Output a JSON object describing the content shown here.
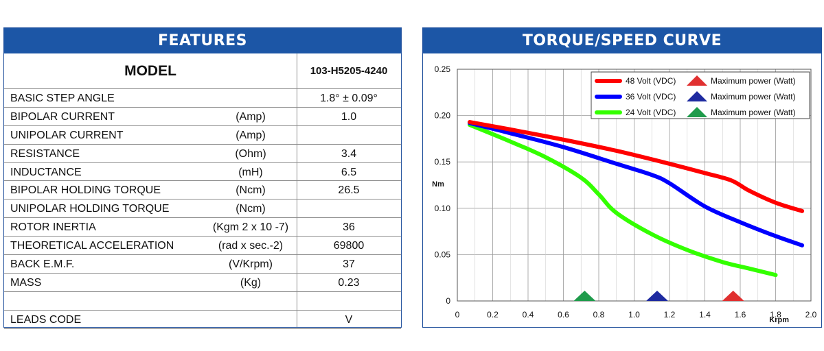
{
  "features": {
    "title": "FEATURES",
    "model_label": "MODEL",
    "model_value": "103-H5205-4240",
    "rows": [
      {
        "name": "BASIC STEP ANGLE",
        "unit": "",
        "value": "1.8° ± 0.09°"
      },
      {
        "name": "BIPOLAR CURRENT",
        "unit": "(Amp)",
        "value": "1.0"
      },
      {
        "name": "UNIPOLAR CURRENT",
        "unit": "(Amp)",
        "value": ""
      },
      {
        "name": "RESISTANCE",
        "unit": "(Ohm)",
        "value": "3.4"
      },
      {
        "name": "INDUCTANCE",
        "unit": "(mH)",
        "value": "6.5"
      },
      {
        "name": "BIPOLAR HOLDING TORQUE",
        "unit": "(Ncm)",
        "value": "26.5"
      },
      {
        "name": "UNIPOLAR HOLDING TORQUE",
        "unit": "(Ncm)",
        "value": ""
      },
      {
        "name": "ROTOR INERTIA",
        "unit": "(Kgm 2 x 10 -7)",
        "value": "36"
      },
      {
        "name": "THEORETICAL ACCELERATION",
        "unit": "(rad x sec.-2)",
        "value": "69800"
      },
      {
        "name": "BACK E.M.F.",
        "unit": "(V/Krpm)",
        "value": "37"
      },
      {
        "name": "MASS",
        "unit": "(Kg)",
        "value": "0.23"
      },
      {
        "name": "",
        "unit": "",
        "value": ""
      },
      {
        "name": "LEADS CODE",
        "unit": "",
        "value": "V"
      }
    ]
  },
  "chart_panel": {
    "title": "TORQUE/SPEED CURVE"
  },
  "chart_data": {
    "type": "line",
    "title": "TORQUE/SPEED CURVE",
    "xlabel": "Krpm",
    "ylabel": "Nm",
    "xlim": [
      0,
      2.0
    ],
    "ylim": [
      0,
      0.25
    ],
    "x_ticks": [
      "0",
      "0.2",
      "0.4",
      "0.6",
      "0.8",
      "1.0",
      "1.2",
      "1.4",
      "1.6",
      "1.8",
      "2.0"
    ],
    "y_ticks": [
      "0",
      "0.05",
      "0.10",
      "0.15",
      "0.20",
      "0.25"
    ],
    "grid": true,
    "legend_position": "top-right",
    "max_power_label": "Maximum power (Watt)",
    "series": [
      {
        "name": "48 Volt (VDC)",
        "color": "#ff0000",
        "x": [
          0.07,
          0.3,
          0.6,
          0.9,
          1.2,
          1.4,
          1.55,
          1.65,
          1.8,
          1.95
        ],
        "y": [
          0.193,
          0.185,
          0.174,
          0.162,
          0.148,
          0.138,
          0.13,
          0.119,
          0.106,
          0.097
        ],
        "max_power_x": 1.56
      },
      {
        "name": "36 Volt (VDC)",
        "color": "#0000ff",
        "x": [
          0.07,
          0.3,
          0.6,
          0.9,
          1.1,
          1.2,
          1.4,
          1.6,
          1.8,
          1.95
        ],
        "y": [
          0.192,
          0.181,
          0.166,
          0.148,
          0.136,
          0.127,
          0.102,
          0.085,
          0.07,
          0.06
        ],
        "max_power_x": 1.13
      },
      {
        "name": "24 Volt (VDC)",
        "color": "#33ff00",
        "x": [
          0.07,
          0.3,
          0.5,
          0.7,
          0.8,
          0.9,
          1.1,
          1.3,
          1.5,
          1.65,
          1.8
        ],
        "y": [
          0.19,
          0.172,
          0.155,
          0.133,
          0.115,
          0.095,
          0.072,
          0.055,
          0.042,
          0.035,
          0.028
        ],
        "max_power_x": 0.72
      }
    ]
  }
}
